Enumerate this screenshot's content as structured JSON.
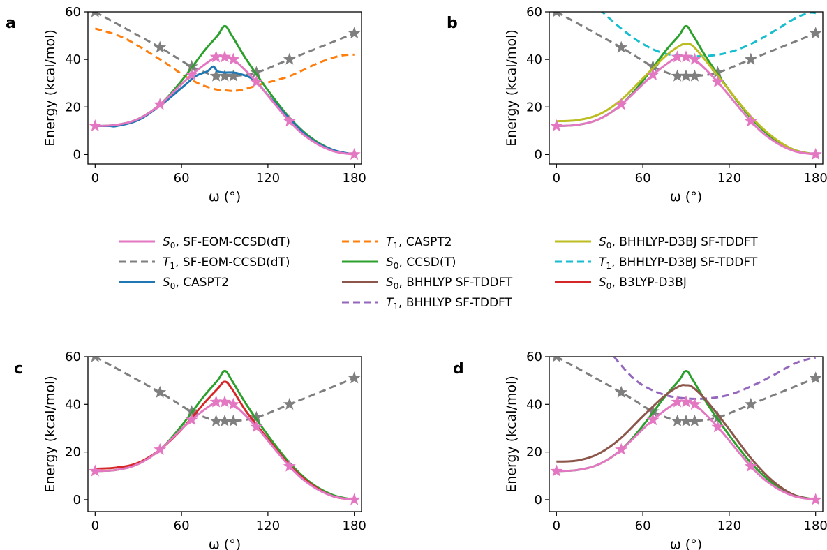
{
  "figure": {
    "panel_letters": [
      "a",
      "b",
      "c",
      "d"
    ],
    "legend": [
      {
        "sym": "S",
        "sub": "0",
        "rest": ", SF-EOM-CCSD(dT)",
        "color": "#e377c2",
        "dash": false
      },
      {
        "sym": "T",
        "sub": "1",
        "rest": ", SF-EOM-CCSD(dT)",
        "color": "#7f7f7f",
        "dash": true
      },
      {
        "sym": "S",
        "sub": "0",
        "rest": ", CASPT2",
        "color": "#1f77b4",
        "dash": false
      },
      {
        "sym": "T",
        "sub": "1",
        "rest": ", CASPT2",
        "color": "#ff7f0e",
        "dash": true
      },
      {
        "sym": "S",
        "sub": "0",
        "rest": ", CCSD(T)",
        "color": "#2ca02c",
        "dash": false
      },
      {
        "sym": "S",
        "sub": "0",
        "rest": ", BHHLYP SF-TDDFT",
        "color": "#8c564b",
        "dash": false
      },
      {
        "sym": "T",
        "sub": "1",
        "rest": ", BHHLYP SF-TDDFT",
        "color": "#9467bd",
        "dash": true
      },
      {
        "sym": "S",
        "sub": "0",
        "rest": ", BHHLYP-D3BJ SF-TDDFT",
        "color": "#bcbd22",
        "dash": false
      },
      {
        "sym": "T",
        "sub": "1",
        "rest": ", BHHLYP-D3BJ SF-TDDFT",
        "color": "#17becf",
        "dash": true
      },
      {
        "sym": "S",
        "sub": "0",
        "rest": ", B3LYP-D3BJ",
        "color": "#d62728",
        "dash": false
      }
    ]
  },
  "chart_data": [
    {
      "panel": "a",
      "type": "line",
      "xlabel": "ω (°)",
      "ylabel": "Energy (kcal/mol)",
      "xlim": [
        -5,
        185
      ],
      "ylim": [
        -4,
        60
      ],
      "xticks": [
        "0",
        "60",
        "120",
        "180"
      ],
      "yticks": [
        "0",
        "20",
        "40",
        "60"
      ],
      "series": [
        {
          "name": "T1, SF-EOM-CCSD(dT)",
          "color": "#7f7f7f",
          "dash": true,
          "markers": true,
          "x": [
            0,
            45,
            67,
            84,
            90,
            96,
            112,
            135,
            180
          ],
          "y": [
            60,
            45,
            37,
            33,
            33,
            33,
            34.5,
            40,
            51
          ]
        },
        {
          "name": "T1, CASPT2",
          "color": "#ff7f0e",
          "dash": true,
          "x": [
            0,
            20,
            45,
            65,
            80,
            90,
            100,
            115,
            135,
            155,
            170,
            180
          ],
          "y": [
            53,
            49,
            40,
            32,
            28,
            27,
            27,
            29.5,
            33,
            38.5,
            41.5,
            42
          ]
        },
        {
          "name": "S0, CCSD(T)",
          "color": "#2ca02c",
          "x": [
            0,
            15,
            30,
            45,
            60,
            75,
            85,
            90,
            95,
            105,
            120,
            135,
            150,
            165,
            180
          ],
          "y": [
            12,
            12.5,
            15,
            21,
            31,
            43,
            50,
            54,
            50,
            40,
            27,
            15.5,
            7,
            2,
            0
          ]
        },
        {
          "name": "S0, CASPT2",
          "color": "#1f77b4",
          "x": [
            0,
            10,
            15,
            30,
            45,
            60,
            70,
            78,
            82,
            85,
            90,
            95,
            100,
            110,
            120,
            135,
            150,
            165,
            180
          ],
          "y": [
            12,
            12,
            12,
            14.5,
            20.5,
            28,
            33,
            35,
            37,
            35,
            34.5,
            34.5,
            34,
            31.5,
            25,
            15,
            6.5,
            2,
            0
          ]
        },
        {
          "name": "S0, SF-EOM-CCSD(dT)",
          "color": "#e377c2",
          "markers": true,
          "marker_pos": "points",
          "x": [
            0,
            15,
            30,
            45,
            67,
            84,
            90,
            96,
            112,
            135,
            150,
            165,
            180
          ],
          "y": [
            12,
            12.5,
            15,
            21,
            33.5,
            41,
            41,
            40,
            30.5,
            14,
            6,
            1.5,
            0
          ],
          "marker_x": [
            0,
            45,
            67,
            84,
            90,
            96,
            112,
            135,
            180
          ],
          "marker_y": [
            12,
            21,
            33.5,
            41,
            41,
            40,
            30.5,
            14,
            0
          ]
        }
      ]
    },
    {
      "panel": "b",
      "type": "line",
      "xlabel": "ω (°)",
      "ylabel": "Energy (kcal/mol)",
      "xlim": [
        -5,
        185
      ],
      "ylim": [
        -4,
        60
      ],
      "xticks": [
        "0",
        "60",
        "120",
        "180"
      ],
      "yticks": [
        "0",
        "20",
        "40",
        "60"
      ],
      "series": [
        {
          "name": "T1, BHHLYP-D3BJ SF-TDDFT",
          "color": "#17becf",
          "dash": true,
          "x": [
            30,
            45,
            60,
            75,
            90,
            105,
            120,
            135,
            150,
            165,
            175,
            180
          ],
          "y": [
            61,
            53,
            46.5,
            42.5,
            41.5,
            41.5,
            43,
            46.5,
            51.5,
            57,
            59.5,
            59.5
          ]
        },
        {
          "name": "T1, SF-EOM-CCSD(dT)",
          "color": "#7f7f7f",
          "dash": true,
          "markers": true,
          "x": [
            0,
            45,
            67,
            84,
            90,
            96,
            112,
            135,
            180
          ],
          "y": [
            60,
            45,
            37,
            33,
            33,
            33,
            34.5,
            40,
            51
          ]
        },
        {
          "name": "S0, CCSD(T)",
          "color": "#2ca02c",
          "x": [
            0,
            15,
            30,
            45,
            60,
            75,
            85,
            90,
            95,
            105,
            120,
            135,
            150,
            165,
            180
          ],
          "y": [
            12,
            12.5,
            15,
            21,
            31,
            43,
            50,
            54,
            50,
            40,
            27,
            15.5,
            7,
            2,
            0
          ]
        },
        {
          "name": "S0, BHHLYP-D3BJ SF-TDDFT",
          "color": "#bcbd22",
          "x": [
            0,
            15,
            30,
            45,
            60,
            75,
            85,
            90,
            95,
            105,
            120,
            135,
            150,
            165,
            180
          ],
          "y": [
            14,
            14.5,
            17,
            23,
            32,
            41,
            45.5,
            46.5,
            45.5,
            38.5,
            27,
            16,
            7.5,
            2,
            0
          ]
        },
        {
          "name": "S0, SF-EOM-CCSD(dT)",
          "color": "#e377c2",
          "markers": true,
          "x": [
            0,
            15,
            30,
            45,
            67,
            84,
            90,
            96,
            112,
            135,
            150,
            165,
            180
          ],
          "y": [
            12,
            12.5,
            15,
            21,
            33.5,
            41,
            41,
            40,
            30.5,
            14,
            6,
            1.5,
            0
          ],
          "marker_x": [
            0,
            45,
            67,
            84,
            90,
            96,
            112,
            135,
            180
          ],
          "marker_y": [
            12,
            21,
            33.5,
            41,
            41,
            40,
            30.5,
            14,
            0
          ]
        }
      ]
    },
    {
      "panel": "c",
      "type": "line",
      "xlabel": "ω (°)",
      "ylabel": "Energy (kcal/mol)",
      "xlim": [
        -5,
        185
      ],
      "ylim": [
        -5,
        60
      ],
      "xticks": [
        "0",
        "60",
        "120",
        "180"
      ],
      "yticks": [
        "0",
        "20",
        "40",
        "60"
      ],
      "series": [
        {
          "name": "T1, SF-EOM-CCSD(dT)",
          "color": "#7f7f7f",
          "dash": true,
          "markers": true,
          "x": [
            0,
            45,
            67,
            84,
            90,
            96,
            112,
            135,
            180
          ],
          "y": [
            60,
            45,
            37,
            33,
            33,
            33,
            34.5,
            40,
            51
          ]
        },
        {
          "name": "S0, CCSD(T)",
          "color": "#2ca02c",
          "x": [
            0,
            15,
            30,
            45,
            60,
            75,
            85,
            90,
            95,
            105,
            120,
            135,
            150,
            165,
            180
          ],
          "y": [
            12,
            12.5,
            15,
            21,
            31,
            43,
            50,
            54,
            50,
            40,
            27,
            15.5,
            7,
            2,
            0
          ]
        },
        {
          "name": "S0, B3LYP-D3BJ",
          "color": "#d62728",
          "x": [
            0,
            15,
            30,
            45,
            60,
            75,
            85,
            90,
            95,
            105,
            120,
            135,
            150,
            165,
            180
          ],
          "y": [
            13,
            13.5,
            15.5,
            21,
            29.5,
            40,
            46.5,
            49.5,
            46.5,
            37,
            25.5,
            14.5,
            6.5,
            1.5,
            0
          ]
        },
        {
          "name": "S0, SF-EOM-CCSD(dT)",
          "color": "#e377c2",
          "markers": true,
          "x": [
            0,
            15,
            30,
            45,
            67,
            84,
            90,
            96,
            112,
            135,
            150,
            165,
            180
          ],
          "y": [
            12,
            12.5,
            15,
            21,
            33.5,
            41,
            41,
            40,
            30.5,
            14,
            6,
            1.5,
            0
          ],
          "marker_x": [
            0,
            45,
            67,
            84,
            90,
            96,
            112,
            135,
            180
          ],
          "marker_y": [
            12,
            21,
            33.5,
            41,
            41,
            40,
            30.5,
            14,
            0
          ]
        }
      ]
    },
    {
      "panel": "d",
      "type": "line",
      "xlabel": "ω (°)",
      "ylabel": "Energy (kcal/mol)",
      "xlim": [
        -5,
        185
      ],
      "ylim": [
        -5,
        60
      ],
      "xticks": [
        "0",
        "60",
        "120",
        "180"
      ],
      "yticks": [
        "0",
        "20",
        "40",
        "60"
      ],
      "series": [
        {
          "name": "T1, BHHLYP SF-TDDFT",
          "color": "#9467bd",
          "dash": true,
          "x": [
            40,
            50,
            60,
            75,
            90,
            105,
            120,
            135,
            150,
            165,
            175,
            180
          ],
          "y": [
            60,
            53,
            48,
            44,
            42.5,
            42.5,
            44,
            47.5,
            52,
            57,
            59,
            59.5
          ]
        },
        {
          "name": "T1, SF-EOM-CCSD(dT)",
          "color": "#7f7f7f",
          "dash": true,
          "markers": true,
          "x": [
            0,
            45,
            67,
            84,
            90,
            96,
            112,
            135,
            180
          ],
          "y": [
            60,
            45,
            37,
            33,
            33,
            33,
            34.5,
            40,
            51
          ]
        },
        {
          "name": "S0, CCSD(T)",
          "color": "#2ca02c",
          "x": [
            0,
            15,
            30,
            45,
            60,
            75,
            85,
            90,
            95,
            105,
            120,
            135,
            150,
            165,
            180
          ],
          "y": [
            12,
            12.5,
            15,
            21,
            31,
            43,
            50,
            54,
            50,
            40,
            27,
            15.5,
            7,
            2,
            0
          ]
        },
        {
          "name": "S0, BHHLYP SF-TDDFT",
          "color": "#8c564b",
          "x": [
            0,
            15,
            30,
            45,
            60,
            75,
            85,
            90,
            95,
            105,
            120,
            135,
            150,
            165,
            180
          ],
          "y": [
            16,
            16.5,
            19.5,
            26,
            35,
            43.5,
            47.5,
            48,
            47,
            41,
            29.5,
            17.5,
            8,
            2,
            0
          ]
        },
        {
          "name": "S0, SF-EOM-CCSD(dT)",
          "color": "#e377c2",
          "markers": true,
          "x": [
            0,
            15,
            30,
            45,
            67,
            84,
            90,
            96,
            112,
            135,
            150,
            165,
            180
          ],
          "y": [
            12,
            12.5,
            15,
            21,
            33.5,
            41,
            41,
            40,
            30.5,
            14,
            6,
            1.5,
            0
          ],
          "marker_x": [
            0,
            45,
            67,
            84,
            90,
            96,
            112,
            135,
            180
          ],
          "marker_y": [
            12,
            21,
            33.5,
            41,
            41,
            40,
            30.5,
            14,
            0
          ]
        }
      ]
    }
  ]
}
